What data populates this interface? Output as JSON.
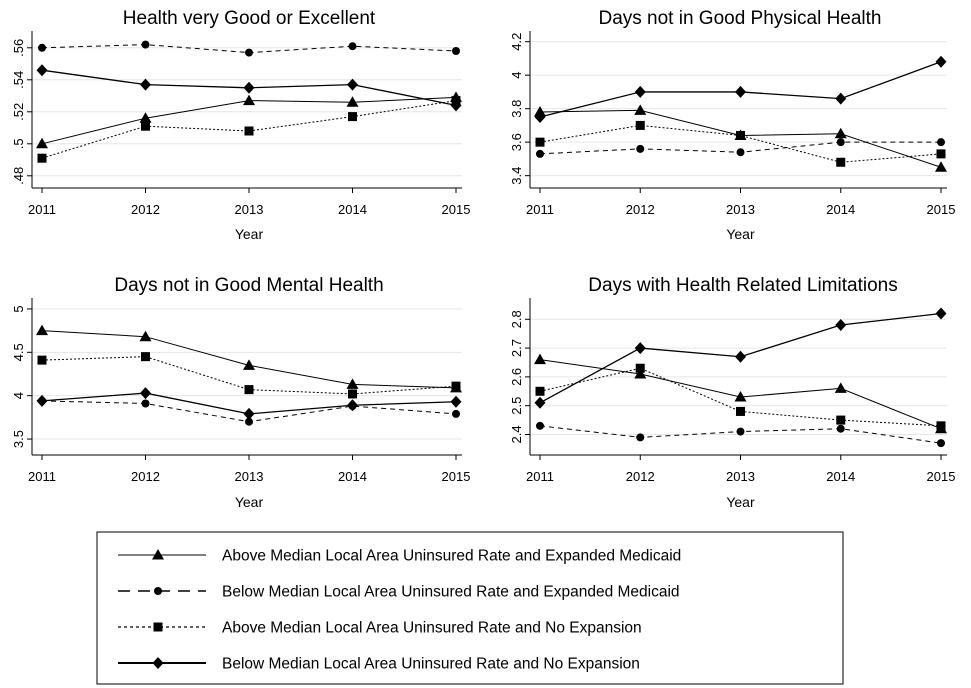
{
  "chart_data": [
    {
      "type": "line",
      "title": "Health very Good or Excellent",
      "xlabel": "Year",
      "ylabel": "",
      "x": [
        2011,
        2012,
        2013,
        2014,
        2015
      ],
      "xticks": [
        "2011",
        "2012",
        "2013",
        "2014",
        "2015"
      ],
      "yticks": [
        ".48",
        ".5",
        ".52",
        ".54",
        ".56"
      ],
      "ylim": [
        0.478,
        0.568
      ],
      "grid": true,
      "series": [
        {
          "name": "Above Median Local Area Uninsured Rate and Expanded Medicaid",
          "values": [
            0.5,
            0.516,
            0.527,
            0.526,
            0.529
          ]
        },
        {
          "name": "Below Median Local Area Uninsured Rate and Expanded Medicaid",
          "values": [
            0.56,
            0.562,
            0.557,
            0.561,
            0.558
          ]
        },
        {
          "name": "Above Median Local Area Uninsured Rate and No Expansion",
          "values": [
            0.491,
            0.511,
            0.508,
            0.517,
            0.527
          ]
        },
        {
          "name": "Below Median Local Area Uninsured Rate and No Expansion",
          "values": [
            0.546,
            0.537,
            0.535,
            0.537,
            0.524
          ]
        }
      ]
    },
    {
      "type": "line",
      "title": "Days not in Good Physical Health",
      "xlabel": "Year",
      "ylabel": "",
      "x": [
        2011,
        2012,
        2013,
        2014,
        2015
      ],
      "xticks": [
        "2011",
        "2012",
        "2013",
        "2014",
        "2015"
      ],
      "yticks": [
        "3.4",
        "3.6",
        "3.8",
        "4",
        "4.2"
      ],
      "ylim": [
        3.38,
        4.24
      ],
      "grid": true,
      "series": [
        {
          "name": "Above Median Local Area Uninsured Rate and Expanded Medicaid",
          "values": [
            3.78,
            3.79,
            3.64,
            3.65,
            3.45
          ]
        },
        {
          "name": "Below Median Local Area Uninsured Rate and Expanded Medicaid",
          "values": [
            3.53,
            3.56,
            3.54,
            3.6,
            3.6
          ]
        },
        {
          "name": "Above Median Local Area Uninsured Rate and No Expansion",
          "values": [
            3.6,
            3.7,
            3.64,
            3.48,
            3.53
          ]
        },
        {
          "name": "Below Median Local Area Uninsured Rate and No Expansion",
          "values": [
            3.75,
            3.9,
            3.9,
            3.86,
            4.08
          ]
        }
      ]
    },
    {
      "type": "line",
      "title": "Days not in Good Mental Health",
      "xlabel": "Year",
      "ylabel": "",
      "x": [
        2011,
        2012,
        2013,
        2014,
        2015
      ],
      "xticks": [
        "2011",
        "2012",
        "2013",
        "2014",
        "2015"
      ],
      "yticks": [
        "3.5",
        "4",
        "4.5",
        "5"
      ],
      "ylim": [
        3.42,
        5.08
      ],
      "grid": true,
      "series": [
        {
          "name": "Above Median Local Area Uninsured Rate and Expanded Medicaid",
          "values": [
            4.75,
            4.68,
            4.35,
            4.13,
            4.09
          ]
        },
        {
          "name": "Below Median Local Area Uninsured Rate and Expanded Medicaid",
          "values": [
            3.94,
            3.91,
            3.7,
            3.88,
            3.79
          ]
        },
        {
          "name": "Above Median Local Area Uninsured Rate and No Expansion",
          "values": [
            4.41,
            4.45,
            4.07,
            4.02,
            4.11
          ]
        },
        {
          "name": "Below Median Local Area Uninsured Rate and No Expansion",
          "values": [
            3.94,
            4.03,
            3.79,
            3.89,
            3.93
          ]
        }
      ]
    },
    {
      "type": "line",
      "title": "Days with Health Related Limitations",
      "xlabel": "Year",
      "ylabel": "",
      "x": [
        2011,
        2012,
        2013,
        2014,
        2015
      ],
      "xticks": [
        "2011",
        "2012",
        "2013",
        "2014",
        "2015"
      ],
      "yticks": [
        "2.4",
        "2.5",
        "2.6",
        "2.7",
        "2.8"
      ],
      "ylim": [
        2.36,
        2.86
      ],
      "grid": true,
      "series": [
        {
          "name": "Above Median Local Area Uninsured Rate and Expanded Medicaid",
          "values": [
            2.66,
            2.61,
            2.53,
            2.56,
            2.42
          ]
        },
        {
          "name": "Below Median Local Area Uninsured Rate and Expanded Medicaid",
          "values": [
            2.43,
            2.39,
            2.41,
            2.42,
            2.37
          ]
        },
        {
          "name": "Above Median Local Area Uninsured Rate and No Expansion",
          "values": [
            2.55,
            2.63,
            2.48,
            2.45,
            2.43
          ]
        },
        {
          "name": "Below Median Local Area Uninsured Rate and No Expansion",
          "values": [
            2.51,
            2.7,
            2.67,
            2.78,
            2.82
          ]
        }
      ]
    }
  ],
  "legend": {
    "entries": [
      {
        "label": "Above Median Local Area Uninsured Rate and Expanded Medicaid",
        "marker": "triangle",
        "line": "solid"
      },
      {
        "label": "Below Median Local Area Uninsured Rate and Expanded Medicaid",
        "marker": "circle",
        "line": "long-dash"
      },
      {
        "label": "Above Median Local Area Uninsured Rate and No Expansion",
        "marker": "square",
        "line": "short-dash"
      },
      {
        "label": "Below Median Local Area Uninsured Rate and No Expansion",
        "marker": "diamond",
        "line": "solid-thick"
      }
    ]
  }
}
